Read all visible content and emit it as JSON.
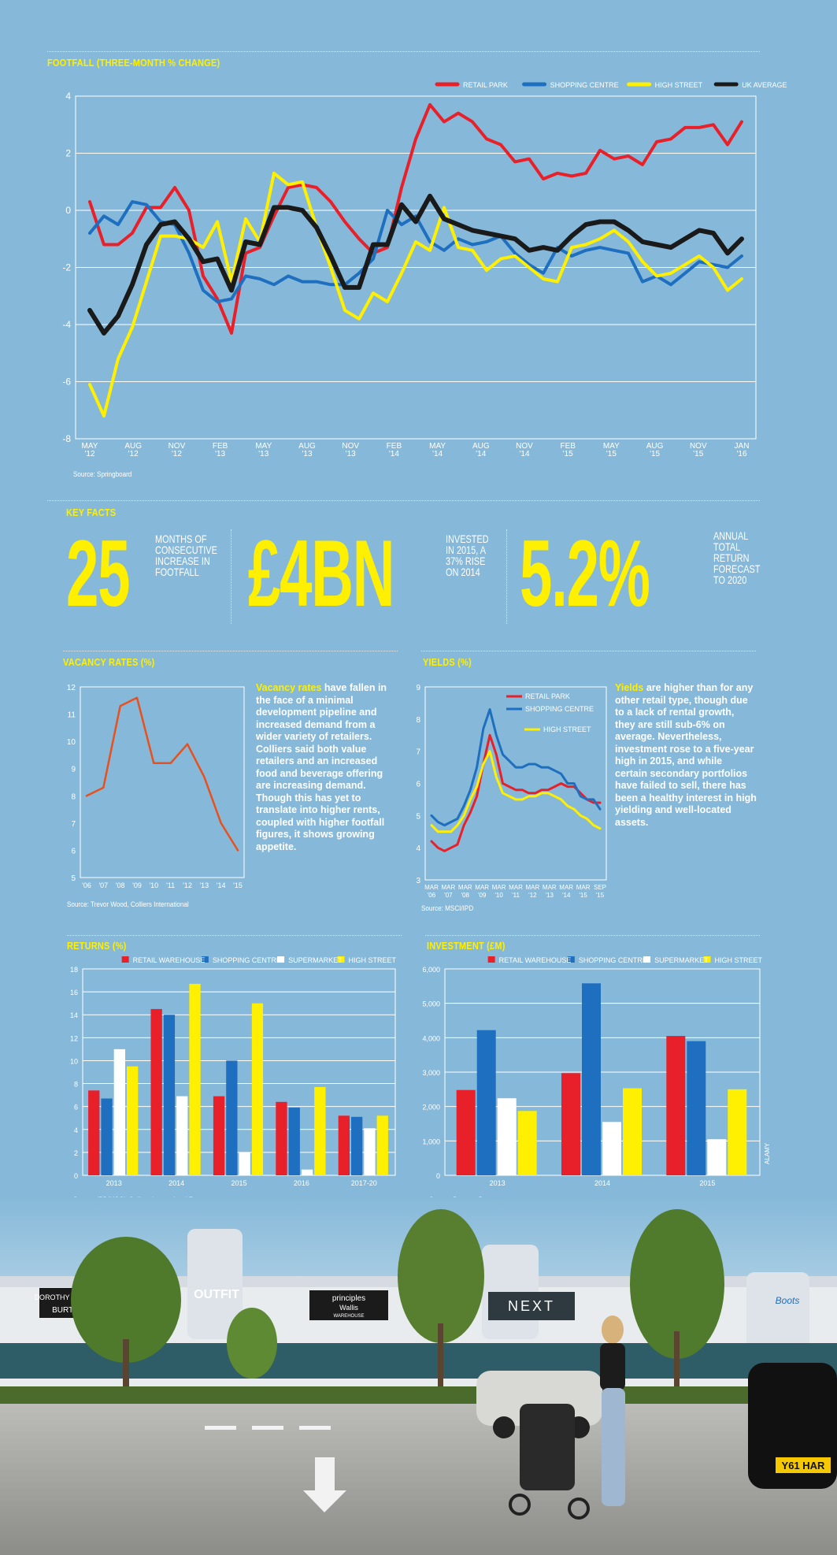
{
  "colors": {
    "red": "#e8202a",
    "blue": "#1e6fc0",
    "yellow": "#ffef00",
    "black": "#1a1a1a",
    "white": "#ffffff",
    "orange": "#e8501c",
    "bg": "#86b9d9"
  },
  "footfall": {
    "title": "FOOTFALL (THREE-MONTH % CHANGE)",
    "source": "Source: Springboard",
    "chart_data": {
      "type": "line",
      "title": "FOOTFALL (THREE-MONTH % CHANGE)",
      "ylim": [
        -8,
        4
      ],
      "yticks": [
        "4",
        "2",
        "0",
        "-2",
        "-4",
        "-6",
        "-8"
      ],
      "xticks": [
        {
          "m": "MAY",
          "y": "'12"
        },
        {
          "m": "AUG",
          "y": "'12"
        },
        {
          "m": "NOV",
          "y": "'12"
        },
        {
          "m": "FEB",
          "y": "'13"
        },
        {
          "m": "MAY",
          "y": "'13"
        },
        {
          "m": "AUG",
          "y": "'13"
        },
        {
          "m": "NOV",
          "y": "'13"
        },
        {
          "m": "FEB",
          "y": "'14"
        },
        {
          "m": "MAY",
          "y": "'14"
        },
        {
          "m": "AUG",
          "y": "'14"
        },
        {
          "m": "NOV",
          "y": "'14"
        },
        {
          "m": "FEB",
          "y": "'15"
        },
        {
          "m": "MAY",
          "y": "'15"
        },
        {
          "m": "AUG",
          "y": "'15"
        },
        {
          "m": "NOV",
          "y": "'15"
        },
        {
          "m": "JAN",
          "y": "'16"
        }
      ],
      "series": [
        {
          "name": "RETAIL PARK",
          "color": "#e8202a",
          "values": [
            0.3,
            -1.2,
            -1.2,
            -0.8,
            0.1,
            0.1,
            0.8,
            0.0,
            -2.3,
            -3.1,
            -4.3,
            -1.5,
            -1.3,
            -0.2,
            0.8,
            0.9,
            0.8,
            0.3,
            -0.4,
            -1.0,
            -1.5,
            -1.3,
            0.8,
            2.5,
            3.7,
            3.1,
            3.4,
            3.1,
            2.5,
            2.3,
            1.7,
            1.8,
            1.1,
            1.3,
            1.2,
            1.3,
            2.1,
            1.8,
            1.9,
            1.6,
            2.4,
            2.5,
            2.9,
            2.9,
            3.0,
            2.3,
            3.1
          ]
        },
        {
          "name": "SHOPPING CENTRE",
          "color": "#1e6fc0",
          "values": [
            -0.8,
            -0.2,
            -0.5,
            0.3,
            0.2,
            -0.4,
            -0.5,
            -1.5,
            -2.8,
            -3.2,
            -3.1,
            -2.3,
            -2.4,
            -2.6,
            -2.3,
            -2.5,
            -2.5,
            -2.6,
            -2.6,
            -2.2,
            -1.7,
            0.0,
            -0.5,
            -0.2,
            -1.1,
            -1.4,
            -1.0,
            -1.2,
            -1.1,
            -0.9,
            -1.5,
            -1.9,
            -2.2,
            -1.3,
            -1.6,
            -1.4,
            -1.3,
            -1.4,
            -1.5,
            -2.5,
            -2.3,
            -2.6,
            -2.2,
            -1.8,
            -1.9,
            -2.0,
            -1.6
          ]
        },
        {
          "name": "HIGH STREET",
          "color": "#ffef00",
          "values": [
            -6.1,
            -7.2,
            -5.2,
            -4.1,
            -2.5,
            -0.9,
            -0.9,
            -1.0,
            -1.3,
            -0.4,
            -2.5,
            -0.3,
            -1.1,
            1.3,
            0.9,
            1.0,
            -0.6,
            -2.0,
            -3.5,
            -3.8,
            -2.9,
            -3.2,
            -2.2,
            -1.1,
            -1.4,
            0.1,
            -1.3,
            -1.4,
            -2.1,
            -1.7,
            -1.6,
            -2.0,
            -2.4,
            -2.5,
            -1.3,
            -1.2,
            -1.0,
            -0.7,
            -1.1,
            -1.8,
            -2.3,
            -2.2,
            -1.9,
            -1.6,
            -2.0,
            -2.8,
            -2.4
          ]
        },
        {
          "name": "UK AVERAGE",
          "color": "#1a1a1a",
          "values": [
            -3.5,
            -4.3,
            -3.7,
            -2.6,
            -1.2,
            -0.5,
            -0.4,
            -1.0,
            -1.8,
            -1.7,
            -2.8,
            -1.1,
            -1.2,
            0.1,
            0.1,
            0.0,
            -0.6,
            -1.6,
            -2.7,
            -2.7,
            -1.2,
            -1.2,
            0.2,
            -0.4,
            0.5,
            -0.3,
            -0.5,
            -0.7,
            -0.8,
            -0.9,
            -1.0,
            -1.4,
            -1.3,
            -1.4,
            -0.9,
            -0.5,
            -0.4,
            -0.4,
            -0.7,
            -1.1,
            -1.2,
            -1.3,
            -1.0,
            -0.7,
            -0.8,
            -1.5,
            -1.0
          ]
        }
      ]
    }
  },
  "keyfacts": {
    "title": "KEY FACTS",
    "facts": [
      {
        "value": "25",
        "desc": "MONTHS OF\nCONSECUTIVE\nINCREASE IN\nFOOTFALL"
      },
      {
        "value": "£4BN",
        "desc": "INVESTED\nIN 2015, A\n37% RISE\nON 2014"
      },
      {
        "value": "5.2%",
        "desc": "ANNUAL\nTOTAL\nRETURN\nFORECAST\nTO 2020"
      }
    ]
  },
  "vacancy": {
    "title": "VACANCY RATES (%)",
    "source": "Source: Trevor Wood, Colliers International",
    "para_lead": "Vacancy rates",
    "para_body": " have fallen in the face of a minimal development pipeline and increased demand from a wider variety of retailers. Colliers said both value retailers and an increased food and beverage offering are increasing demand. Though this has yet to translate into higher rents, coupled with higher footfall figures, it shows growing appetite.",
    "chart_data": {
      "type": "line",
      "title": "VACANCY RATES (%)",
      "ylim": [
        5,
        12
      ],
      "yticks": [
        "12",
        "11",
        "10",
        "9",
        "8",
        "7",
        "6",
        "5"
      ],
      "xticks": [
        "'06",
        "'07",
        "'08",
        "'09",
        "'10",
        "'11",
        "'12",
        "'13",
        "'14",
        "'15"
      ],
      "series": [
        {
          "name": "Vacancy rate",
          "color": "#e8501c",
          "values": [
            8.0,
            8.3,
            11.3,
            11.6,
            9.2,
            9.2,
            9.9,
            8.7,
            7.0,
            6.0
          ]
        }
      ]
    }
  },
  "yields": {
    "title": "YIELDS (%)",
    "source": "Source: MSCI/IPD",
    "para_lead": "Yields",
    "para_body": " are higher than for any other retail type, though due to a lack of rental growth, they are still sub-6% on average. Nevertheless, investment rose to a five-year high in 2015, and while certain secondary portfolios have failed to sell, there has been a healthy interest in high yielding and well-located assets.",
    "chart_data": {
      "type": "line",
      "title": "YIELDS (%)",
      "ylim": [
        3,
        9
      ],
      "yticks": [
        "9",
        "8",
        "7",
        "6",
        "5",
        "4",
        "3"
      ],
      "xticks": [
        {
          "m": "MAR",
          "y": "'06"
        },
        {
          "m": "MAR",
          "y": "'07"
        },
        {
          "m": "MAR",
          "y": "'08"
        },
        {
          "m": "MAR",
          "y": "'09"
        },
        {
          "m": "MAR",
          "y": "'10"
        },
        {
          "m": "MAR",
          "y": "'11"
        },
        {
          "m": "MAR",
          "y": "'12"
        },
        {
          "m": "MAR",
          "y": "'13"
        },
        {
          "m": "MAR",
          "y": "'14"
        },
        {
          "m": "MAR",
          "y": "'15"
        },
        {
          "m": "SEP",
          "y": "'15"
        }
      ],
      "series": [
        {
          "name": "RETAIL PARK",
          "color": "#e8202a",
          "values": [
            4.2,
            4.0,
            3.9,
            4.0,
            4.1,
            4.7,
            5.1,
            5.6,
            6.6,
            7.5,
            6.9,
            6.0,
            5.9,
            5.8,
            5.8,
            5.7,
            5.7,
            5.8,
            5.8,
            5.9,
            6.0,
            5.9,
            5.9,
            5.7,
            5.5,
            5.4,
            5.4
          ]
        },
        {
          "name": "SHOPPING CENTRE",
          "color": "#1e6fc0",
          "values": [
            5.0,
            4.8,
            4.7,
            4.8,
            4.9,
            5.3,
            5.8,
            6.5,
            7.7,
            8.3,
            7.5,
            6.9,
            6.7,
            6.5,
            6.5,
            6.6,
            6.6,
            6.5,
            6.5,
            6.4,
            6.3,
            6.0,
            6.0,
            5.6,
            5.5,
            5.5,
            5.2
          ]
        },
        {
          "name": "HIGH STREET",
          "color": "#ffef00",
          "values": [
            4.7,
            4.5,
            4.5,
            4.5,
            4.7,
            5.0,
            5.5,
            5.9,
            6.6,
            7.0,
            6.2,
            5.7,
            5.6,
            5.5,
            5.5,
            5.6,
            5.6,
            5.7,
            5.7,
            5.6,
            5.5,
            5.3,
            5.2,
            5.0,
            4.9,
            4.7,
            4.6
          ]
        }
      ]
    }
  },
  "returns": {
    "title": "RETURNS (%)",
    "source": "Source: IPD/MSCI, Colliers International Forecast",
    "chart_data": {
      "type": "bar",
      "title": "RETURNS (%)",
      "ylim": [
        0,
        18
      ],
      "yticks": [
        "18",
        "16",
        "14",
        "12",
        "10",
        "8",
        "6",
        "4",
        "2",
        "0"
      ],
      "categories": [
        "2013",
        "2014",
        "2015",
        "2016",
        "2017-20"
      ],
      "series": [
        {
          "name": "RETAIL WAREHOUSE",
          "color": "#e8202a",
          "values": [
            7.4,
            14.5,
            6.9,
            6.4,
            5.2
          ]
        },
        {
          "name": "SHOPPING CENTRE",
          "color": "#1e6fc0",
          "values": [
            6.7,
            14.0,
            10.0,
            5.9,
            5.1
          ]
        },
        {
          "name": "SUPERMARKET",
          "color": "#ffffff",
          "values": [
            11.0,
            6.9,
            2.0,
            0.5,
            4.1
          ]
        },
        {
          "name": "HIGH STREET",
          "color": "#ffef00",
          "values": [
            9.5,
            16.7,
            15.0,
            7.7,
            5.2
          ]
        }
      ]
    }
  },
  "investment": {
    "title": "INVESTMENT (£M)",
    "source": "Source: Property Data",
    "credit": "ALAMY",
    "chart_data": {
      "type": "bar",
      "title": "INVESTMENT (£M)",
      "ylim": [
        0,
        6000
      ],
      "yticks": [
        "6,000",
        "5,000",
        "4,000",
        "3,000",
        "2,000",
        "1,000",
        "0"
      ],
      "categories": [
        "2013",
        "2014",
        "2015"
      ],
      "series": [
        {
          "name": "RETAIL WAREHOUSE",
          "color": "#e8202a",
          "values": [
            2480,
            2970,
            4050
          ]
        },
        {
          "name": "SHOPPING CENTRE",
          "color": "#1e6fc0",
          "values": [
            4220,
            5580,
            3900
          ]
        },
        {
          "name": "SUPERMARKET",
          "color": "#ffffff",
          "values": [
            2240,
            1550,
            1050
          ]
        },
        {
          "name": "HIGH STREET",
          "color": "#ffef00",
          "values": [
            1870,
            2530,
            2500
          ]
        }
      ]
    }
  },
  "photo": {
    "signs": [
      "DOROTHY PERKINS",
      "BURTON",
      "OUTFIT",
      "principles",
      "Wallis",
      "WAREHOUSE",
      "NEXT",
      "Boots"
    ],
    "plate": "Y61 HAR"
  }
}
